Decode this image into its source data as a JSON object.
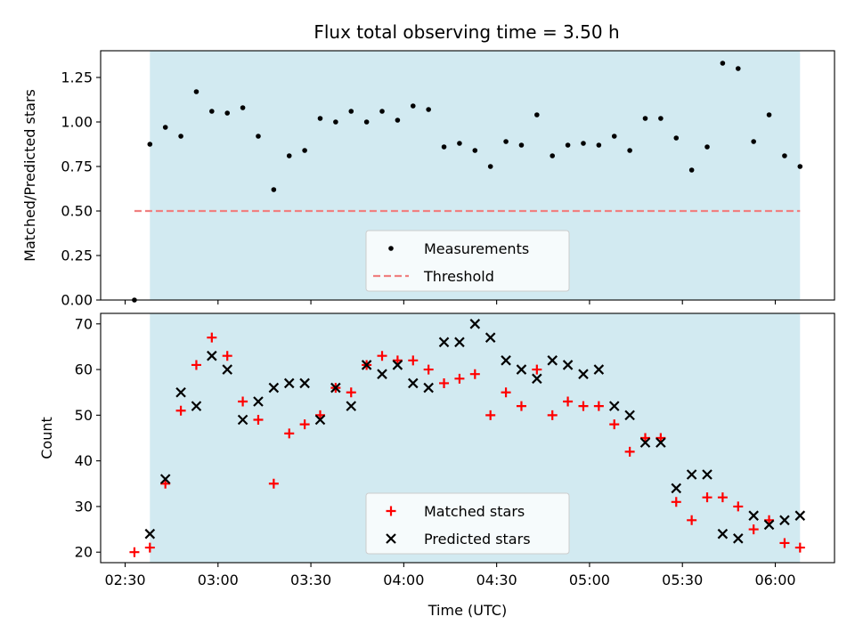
{
  "chart_data": [
    {
      "type": "scatter",
      "title": "Flux total observing time = 3.50 h",
      "xlabel": "",
      "ylabel": "Matched/Predicted stars",
      "ylim": [
        0,
        1.4
      ],
      "yticks": [
        "0.00",
        "0.25",
        "0.50",
        "0.75",
        "1.00",
        "1.25"
      ],
      "xticks": [
        "02:30",
        "03:00",
        "03:30",
        "04:00",
        "04:30",
        "05:00",
        "05:30",
        "06:00"
      ],
      "show_xtick_labels": false,
      "shaded_span": [
        "02:38",
        "06:08"
      ],
      "shade_color": "#add8e6",
      "threshold": {
        "value": 0.5,
        "from": "02:33",
        "to": "06:08",
        "color": "#f08080"
      },
      "legend": {
        "position": "bottom-center",
        "entries": [
          "Measurements",
          "Threshold"
        ]
      },
      "series": [
        {
          "name": "Measurements",
          "color": "#000000",
          "points": [
            [
              "02:33",
              0.0
            ],
            [
              "02:38",
              0.875
            ],
            [
              "02:43",
              0.97
            ],
            [
              "02:48",
              0.92
            ],
            [
              "02:53",
              1.17
            ],
            [
              "02:58",
              1.06
            ],
            [
              "03:03",
              1.05
            ],
            [
              "03:08",
              1.08
            ],
            [
              "03:13",
              0.92
            ],
            [
              "03:18",
              0.62
            ],
            [
              "03:23",
              0.81
            ],
            [
              "03:28",
              0.84
            ],
            [
              "03:33",
              1.02
            ],
            [
              "03:38",
              1.0
            ],
            [
              "03:43",
              1.06
            ],
            [
              "03:48",
              1.0
            ],
            [
              "03:53",
              1.06
            ],
            [
              "03:58",
              1.01
            ],
            [
              "04:03",
              1.09
            ],
            [
              "04:08",
              1.07
            ],
            [
              "04:13",
              0.86
            ],
            [
              "04:18",
              0.88
            ],
            [
              "04:23",
              0.84
            ],
            [
              "04:28",
              0.75
            ],
            [
              "04:33",
              0.89
            ],
            [
              "04:38",
              0.87
            ],
            [
              "04:43",
              1.04
            ],
            [
              "04:48",
              0.81
            ],
            [
              "04:53",
              0.87
            ],
            [
              "04:58",
              0.88
            ],
            [
              "05:03",
              0.87
            ],
            [
              "05:08",
              0.92
            ],
            [
              "05:13",
              0.84
            ],
            [
              "05:18",
              1.02
            ],
            [
              "05:23",
              1.02
            ],
            [
              "05:28",
              0.91
            ],
            [
              "05:33",
              0.73
            ],
            [
              "05:38",
              0.86
            ],
            [
              "05:43",
              1.33
            ],
            [
              "05:48",
              1.3
            ],
            [
              "05:53",
              0.89
            ],
            [
              "05:58",
              1.04
            ],
            [
              "06:03",
              0.81
            ],
            [
              "06:08",
              0.75
            ]
          ]
        }
      ]
    },
    {
      "type": "scatter",
      "title": "",
      "xlabel": "Time (UTC)",
      "ylabel": "Count",
      "ylim": [
        17.7,
        72.3
      ],
      "yticks": [
        "20",
        "30",
        "40",
        "50",
        "60",
        "70"
      ],
      "xticks": [
        "02:30",
        "03:00",
        "03:30",
        "04:00",
        "04:30",
        "05:00",
        "05:30",
        "06:00"
      ],
      "show_xtick_labels": true,
      "shaded_span": [
        "02:38",
        "06:08"
      ],
      "shade_color": "#add8e6",
      "legend": {
        "position": "bottom-center",
        "entries": [
          "Matched stars",
          "Predicted stars"
        ]
      },
      "series": [
        {
          "name": "Matched stars",
          "marker": "+",
          "color": "#ff0000",
          "points": [
            [
              "02:33",
              20
            ],
            [
              "02:38",
              21
            ],
            [
              "02:43",
              35
            ],
            [
              "02:48",
              51
            ],
            [
              "02:53",
              61
            ],
            [
              "02:58",
              67
            ],
            [
              "03:03",
              63
            ],
            [
              "03:08",
              53
            ],
            [
              "03:13",
              49
            ],
            [
              "03:18",
              35
            ],
            [
              "03:23",
              46
            ],
            [
              "03:28",
              48
            ],
            [
              "03:33",
              50
            ],
            [
              "03:38",
              56
            ],
            [
              "03:43",
              55
            ],
            [
              "03:48",
              61
            ],
            [
              "03:53",
              63
            ],
            [
              "03:58",
              62
            ],
            [
              "04:03",
              62
            ],
            [
              "04:08",
              60
            ],
            [
              "04:13",
              57
            ],
            [
              "04:18",
              58
            ],
            [
              "04:23",
              59
            ],
            [
              "04:28",
              50
            ],
            [
              "04:33",
              55
            ],
            [
              "04:38",
              52
            ],
            [
              "04:43",
              60
            ],
            [
              "04:48",
              50
            ],
            [
              "04:53",
              53
            ],
            [
              "04:58",
              52
            ],
            [
              "05:03",
              52
            ],
            [
              "05:08",
              48
            ],
            [
              "05:13",
              42
            ],
            [
              "05:18",
              45
            ],
            [
              "05:23",
              45
            ],
            [
              "05:28",
              31
            ],
            [
              "05:33",
              27
            ],
            [
              "05:38",
              32
            ],
            [
              "05:43",
              32
            ],
            [
              "05:48",
              30
            ],
            [
              "05:53",
              25
            ],
            [
              "05:58",
              27
            ],
            [
              "06:03",
              22
            ],
            [
              "06:08",
              21
            ]
          ]
        },
        {
          "name": "Predicted stars",
          "marker": "x",
          "color": "#000000",
          "points": [
            [
              "02:38",
              24
            ],
            [
              "02:43",
              36
            ],
            [
              "02:48",
              55
            ],
            [
              "02:53",
              52
            ],
            [
              "02:58",
              63
            ],
            [
              "03:03",
              60
            ],
            [
              "03:08",
              49
            ],
            [
              "03:13",
              53
            ],
            [
              "03:18",
              56
            ],
            [
              "03:23",
              57
            ],
            [
              "03:28",
              57
            ],
            [
              "03:33",
              49
            ],
            [
              "03:38",
              56
            ],
            [
              "03:43",
              52
            ],
            [
              "03:48",
              61
            ],
            [
              "03:53",
              59
            ],
            [
              "03:58",
              61
            ],
            [
              "04:03",
              57
            ],
            [
              "04:08",
              56
            ],
            [
              "04:13",
              66
            ],
            [
              "04:18",
              66
            ],
            [
              "04:23",
              70
            ],
            [
              "04:28",
              67
            ],
            [
              "04:33",
              62
            ],
            [
              "04:38",
              60
            ],
            [
              "04:43",
              58
            ],
            [
              "04:48",
              62
            ],
            [
              "04:53",
              61
            ],
            [
              "04:58",
              59
            ],
            [
              "05:03",
              60
            ],
            [
              "05:08",
              52
            ],
            [
              "05:13",
              50
            ],
            [
              "05:18",
              44
            ],
            [
              "05:23",
              44
            ],
            [
              "05:28",
              34
            ],
            [
              "05:33",
              37
            ],
            [
              "05:38",
              37
            ],
            [
              "05:43",
              24
            ],
            [
              "05:48",
              23
            ],
            [
              "05:53",
              28
            ],
            [
              "05:58",
              26
            ],
            [
              "06:03",
              27
            ],
            [
              "06:08",
              28
            ]
          ]
        }
      ]
    }
  ]
}
